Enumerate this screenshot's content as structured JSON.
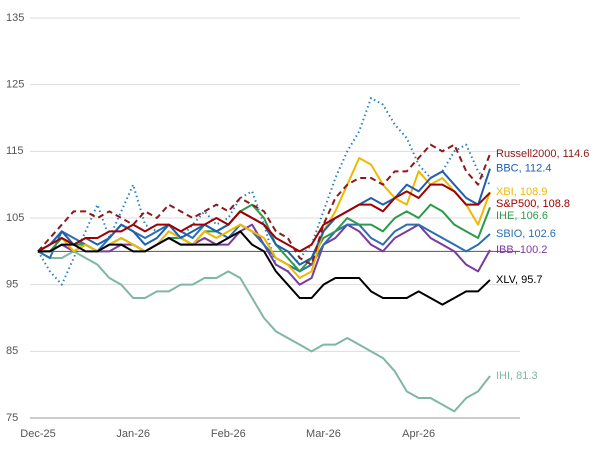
{
  "chart_data": {
    "type": "line",
    "categories": [
      "Dec-25",
      null,
      null,
      null,
      null,
      null,
      null,
      null,
      "Jan-26",
      null,
      null,
      null,
      null,
      null,
      null,
      null,
      "Feb-26",
      null,
      null,
      null,
      null,
      null,
      null,
      null,
      "Mar-26",
      null,
      null,
      null,
      null,
      null,
      null,
      null,
      "Apr-26",
      null,
      null,
      null,
      null,
      null,
      null
    ],
    "ylim": [
      75,
      135
    ],
    "yticks": [
      75,
      85,
      95,
      105,
      115,
      125,
      135
    ],
    "grid": true,
    "reference_line": 100,
    "series": [
      {
        "color": "#2a80c0",
        "dash": "dotted",
        "values": [
          100,
          97,
          95,
          99,
          103,
          107,
          102,
          106,
          110,
          104,
          103,
          104,
          102,
          104,
          106,
          104,
          105,
          108,
          109,
          104,
          98,
          97,
          99,
          101,
          106,
          111,
          115,
          118,
          123,
          122,
          119,
          117,
          113,
          111,
          112,
          115,
          116,
          112,
          110
        ]
      },
      {
        "name": "IHI, 81.3",
        "color": "#7fb8a0",
        "values": [
          100,
          99,
          99,
          100,
          99,
          98,
          96,
          95,
          93,
          93,
          94,
          94,
          95,
          95,
          96,
          96,
          97,
          96,
          93,
          90,
          88,
          87,
          86,
          85,
          86,
          86,
          87,
          86,
          85,
          84,
          82,
          79,
          78,
          78,
          77,
          76,
          78,
          79,
          81.3
        ]
      },
      {
        "name": "IBB, 100.2",
        "color": "#7a3aa0",
        "values": [
          100,
          100,
          101,
          100,
          101,
          100,
          100,
          101,
          101,
          100,
          101,
          102,
          101,
          101,
          102,
          101,
          101,
          103,
          104,
          101,
          98,
          97,
          95,
          96,
          101,
          102,
          104,
          103,
          101,
          100,
          102,
          103,
          104,
          102,
          101,
          100,
          98,
          97,
          100.2
        ]
      },
      {
        "name": "SBIO, 102.6",
        "color": "#2a6fb0",
        "values": [
          100,
          99,
          103,
          102,
          101,
          100,
          102,
          104,
          103,
          102,
          103,
          104,
          103,
          102,
          104,
          103,
          102,
          104,
          103,
          101,
          99,
          98,
          97,
          98,
          101,
          103,
          104,
          104,
          102,
          101,
          103,
          104,
          104,
          103,
          102,
          101,
          100,
          101,
          102.6
        ]
      },
      {
        "name": "IHE, 106.6",
        "color": "#2e9a4a",
        "values": [
          100,
          100,
          102,
          101,
          101,
          100,
          101,
          102,
          101,
          100,
          101,
          102,
          102,
          101,
          103,
          103,
          104,
          106,
          107,
          105,
          101,
          99,
          97,
          99,
          102,
          103,
          105,
          104,
          104,
          103,
          105,
          106,
          105,
          107,
          106,
          104,
          103,
          102,
          106.6
        ]
      },
      {
        "name": "XBI, 108.9",
        "color": "#f0b800",
        "values": [
          100,
          101,
          102,
          100,
          101,
          100,
          101,
          102,
          101,
          100,
          101,
          103,
          102,
          101,
          103,
          102,
          103,
          104,
          103,
          102,
          99,
          98,
          96,
          97,
          103,
          106,
          110,
          114,
          113,
          110,
          108,
          107,
          112,
          110,
          111,
          109,
          107,
          104,
          108.9
        ]
      },
      {
        "name": "BBC, 112.4",
        "color": "#1f5fb0",
        "values": [
          100,
          101,
          103,
          101,
          102,
          101,
          102,
          104,
          103,
          101,
          102,
          104,
          102,
          103,
          104,
          103,
          104,
          106,
          105,
          104,
          101,
          100,
          98,
          99,
          103,
          105,
          106,
          107,
          108,
          107,
          108,
          110,
          109,
          111,
          112,
          110,
          108,
          107,
          112.4
        ]
      },
      {
        "name": "S&P500, 108.8",
        "color": "#a00000",
        "values": [
          100,
          101,
          102,
          101,
          102,
          102,
          103,
          103,
          104,
          103,
          104,
          104,
          103,
          104,
          104,
          105,
          104,
          106,
          105,
          104,
          102,
          101,
          100,
          101,
          104,
          105,
          106,
          107,
          107,
          106,
          108,
          109,
          108,
          110,
          110,
          109,
          107,
          107,
          108.8
        ]
      },
      {
        "name": "Russell2000, 114.6",
        "color": "#8b1a1a",
        "dash": "dashed",
        "values": [
          100,
          102,
          104,
          106,
          106,
          105,
          106,
          105,
          104,
          106,
          105,
          107,
          106,
          105,
          106,
          107,
          106,
          108,
          107,
          106,
          103,
          102,
          99,
          98,
          104,
          108,
          110,
          111,
          111,
          110,
          112,
          112,
          114,
          116,
          115,
          116,
          112,
          110,
          114.6
        ]
      },
      {
        "name": "XLV, 95.7",
        "color": "#000000",
        "values": [
          100,
          100,
          101,
          101,
          100,
          100,
          101,
          101,
          100,
          100,
          101,
          102,
          101,
          101,
          101,
          101,
          102,
          103,
          101,
          100,
          97,
          95,
          93,
          93,
          95,
          96,
          96,
          96,
          94,
          93,
          93,
          93,
          94,
          93,
          92,
          93,
          94,
          94,
          95.7
        ]
      }
    ]
  }
}
